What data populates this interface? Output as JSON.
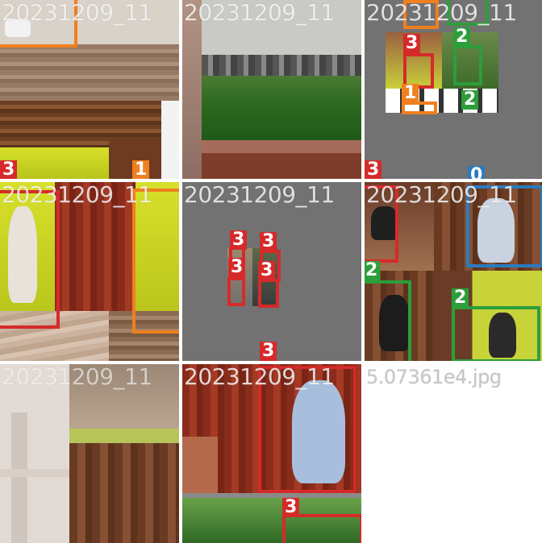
{
  "tiles": [
    {
      "title": "20231209_11",
      "labels": [
        "1",
        "3",
        "1"
      ]
    },
    {
      "title": "20231209_11",
      "labels": []
    },
    {
      "title": "20231209_11",
      "labels": [
        "3",
        "3",
        "2",
        "1",
        "2",
        "0"
      ]
    },
    {
      "title": "20231209_11",
      "labels": []
    },
    {
      "title": "20231209_11",
      "labels": [
        "3",
        "3",
        "3",
        "3",
        "3"
      ]
    },
    {
      "title": "20231209_11",
      "labels": [
        "2",
        "2",
        "0"
      ]
    },
    {
      "title": "20231209_11",
      "labels": []
    },
    {
      "title": "20231209_11",
      "labels": [
        "3"
      ]
    },
    {
      "title": "5.07361e4.jpg",
      "labels": []
    }
  ],
  "colors": {
    "class_0": "#2a7bbf",
    "class_1": "#f07f1f",
    "class_2": "#2c9e3a",
    "class_3": "#d62a2a",
    "tile_bg": "#727272"
  }
}
